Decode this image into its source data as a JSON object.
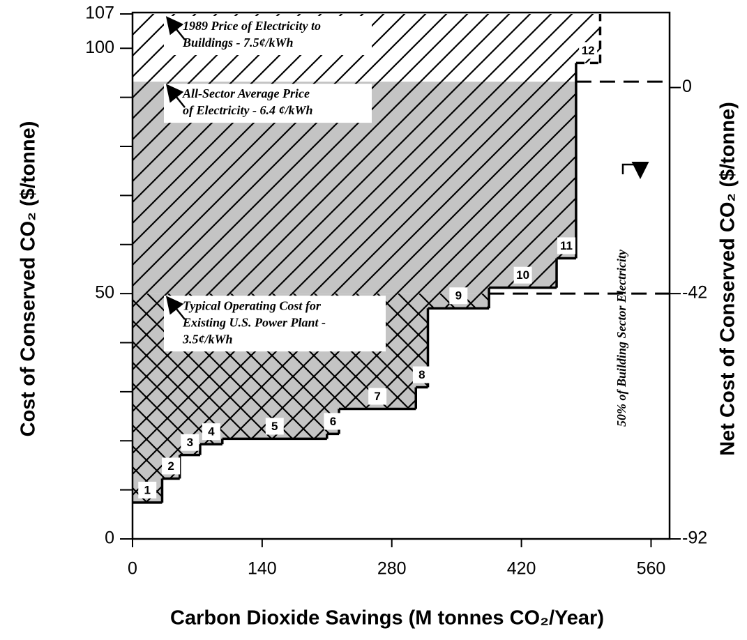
{
  "chart_data": {
    "type": "step",
    "x_label": "Carbon Dioxide Savings (M tonnes CO₂/Year)",
    "y_label": "Cost of Conserved CO₂ ($/tonne)",
    "y2_label": "Net Cost of Conserved CO₂ ($/tonne)",
    "categories": [
      "1",
      "2",
      "3",
      "4",
      "5",
      "6",
      "7",
      "8",
      "9",
      "10",
      "11",
      "12"
    ],
    "savings": [
      32,
      19,
      22,
      24,
      113,
      13,
      83,
      13,
      66,
      73,
      21,
      26
    ],
    "values": [
      7.4,
      12.3,
      17.1,
      19.3,
      20.4,
      21.4,
      26.5,
      30.9,
      47,
      51.2,
      57.2,
      97
    ],
    "xlim": [
      0,
      580
    ],
    "xticks": [
      0,
      140,
      280,
      420,
      560
    ],
    "ylim": [
      0,
      107
    ],
    "yticks": [
      0,
      50,
      100,
      107
    ],
    "yminor_ticks": [
      10,
      20,
      30,
      40,
      60,
      70,
      80,
      90
    ],
    "y2lim": [
      -92,
      15
    ],
    "y2ticks": [
      -92,
      -42,
      0
    ],
    "price_levels": [
      {
        "value": 107,
        "lines": [
          "1989 Price of Electricity to",
          "Buildings - 7.5¢/kWh"
        ]
      },
      {
        "value": 93.2,
        "lines": [
          "All-Sector Average Price",
          "of Electricity - 6.4 ¢/kWh"
        ]
      },
      {
        "value": 50,
        "lines": [
          "Typical Operating Cost for",
          "Existing U.S. Power Plant -",
          "3.5¢/kWh"
        ]
      }
    ],
    "share_note": "50% of Building Sector Electricity"
  }
}
